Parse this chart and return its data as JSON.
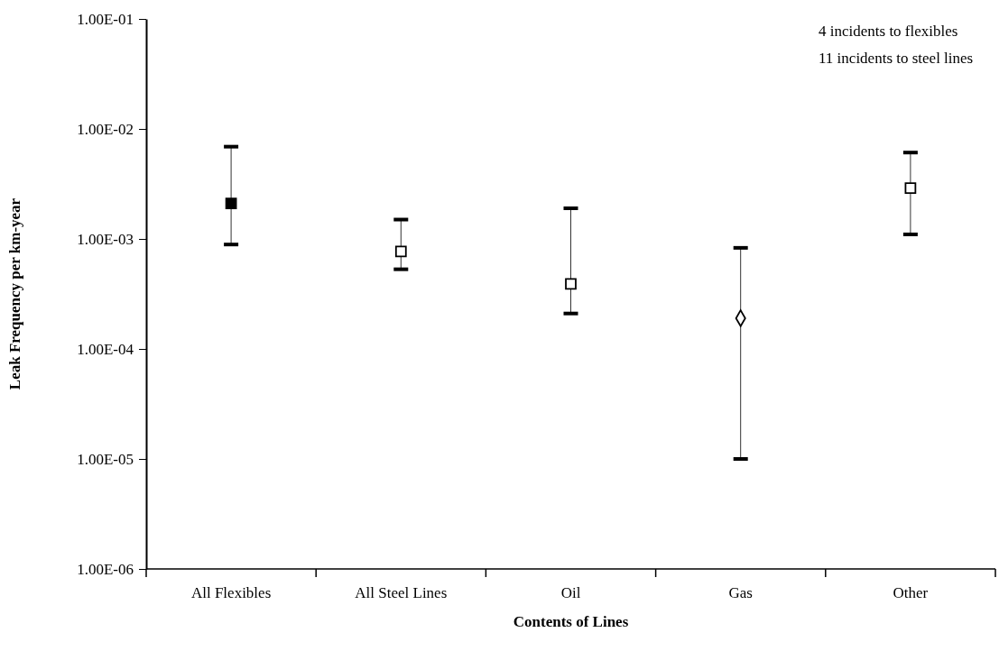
{
  "chart_data": {
    "type": "scatter",
    "xlabel": "Contents of Lines",
    "ylabel": "Leak Frequency per km-year",
    "categories": [
      "All Flexibles",
      "All Steel Lines",
      "Oil",
      "Gas",
      "Other"
    ],
    "series": [
      {
        "color": "#000000",
        "marker": "square",
        "x": [
          "All Flexibles"
        ],
        "values": [
          0.0021
        ],
        "errors": [
          [
            0.00089,
            0.0069
          ]
        ]
      },
      {
        "color": "#000000",
        "marker": "square",
        "x": [
          "All Steel Lines",
          "Oil",
          "Other"
        ],
        "values": [
          0.00077,
          0.00039,
          0.0029
        ],
        "errors": [
          [
            0.00053,
            0.0015
          ],
          [
            0.00021,
            0.0019
          ],
          [
            0.0011,
            0.0061
          ]
        ]
      },
      {
        "color": "#000000",
        "marker": "diamond",
        "x": [
          "Gas"
        ],
        "values": [
          0.00019
        ],
        "errors": [
          [
            1e-05,
            0.00083
          ]
        ]
      }
    ],
    "log": "y",
    "ylim": [
      1e-06,
      0.1
    ],
    "yticks": [
      {
        "value": 1e-06,
        "label": "1.00E-06"
      },
      {
        "value": 1e-05,
        "label": "1.00E-05"
      },
      {
        "value": 0.0001,
        "label": "1.00E-04"
      },
      {
        "value": 0.001,
        "label": "1.00E-03"
      },
      {
        "value": 0.01,
        "label": "1.00E-02"
      },
      {
        "value": 0.1,
        "label": "1.00E-01"
      }
    ],
    "annotations": [
      "4 incidents to flexibles",
      "11 incidents to steel lines"
    ],
    "grid": false
  }
}
